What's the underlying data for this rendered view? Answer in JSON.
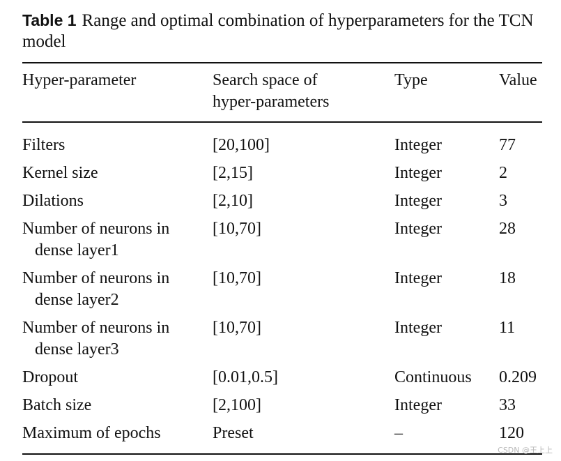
{
  "caption": {
    "tag": "Table 1",
    "text": "Range and optimal combination of hyperparameters for the TCN model"
  },
  "table": {
    "headers": [
      "Hyper-parameter",
      "Search space of hyper-parameters",
      "Type",
      "Value"
    ],
    "rows": [
      {
        "param": [
          "Filters"
        ],
        "space": "[20,100]",
        "type": "Integer",
        "value": "77"
      },
      {
        "param": [
          "Kernel size"
        ],
        "space": "[2,15]",
        "type": "Integer",
        "value": "2"
      },
      {
        "param": [
          "Dilations"
        ],
        "space": "[2,10]",
        "type": "Integer",
        "value": "3"
      },
      {
        "param": [
          "Number of neurons in",
          "dense layer1"
        ],
        "space": "[10,70]",
        "type": "Integer",
        "value": "28"
      },
      {
        "param": [
          "Number of neurons in",
          "dense layer2"
        ],
        "space": "[10,70]",
        "type": "Integer",
        "value": "18"
      },
      {
        "param": [
          "Number of neurons in",
          "dense layer3"
        ],
        "space": "[10,70]",
        "type": "Integer",
        "value": "11"
      },
      {
        "param": [
          "Dropout"
        ],
        "space": "[0.01,0.5]",
        "type": "Continuous",
        "value": "0.209"
      },
      {
        "param": [
          "Batch size"
        ],
        "space": "[2,100]",
        "type": "Integer",
        "value": "33"
      },
      {
        "param": [
          "Maximum of epochs"
        ],
        "space": "Preset",
        "type": "–",
        "value": "120"
      }
    ]
  },
  "watermark": "CSDN @王上上"
}
